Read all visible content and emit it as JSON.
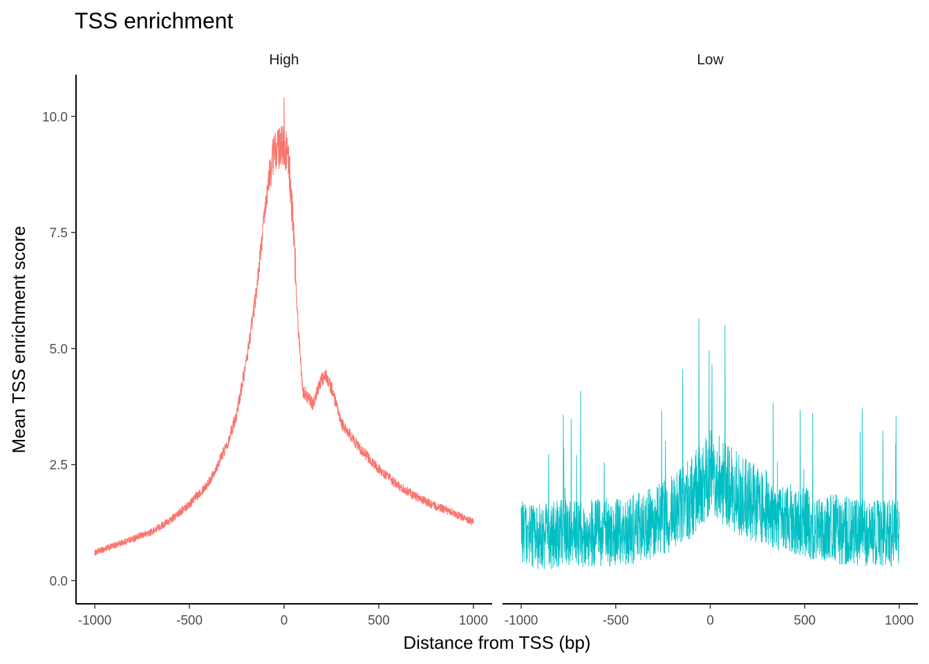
{
  "chart_data": {
    "type": "line",
    "title": "TSS enrichment",
    "xlabel": "Distance from TSS (bp)",
    "ylabel": "Mean TSS enrichment score",
    "xlim": [
      -1000,
      1000
    ],
    "ylim": [
      -0.5,
      10.9
    ],
    "x_ticks": [
      -1000,
      -500,
      0,
      500,
      1000
    ],
    "x_tick_labels": [
      "-1000",
      "-500",
      "0",
      "500",
      "1000"
    ],
    "y_ticks": [
      0.0,
      2.5,
      5.0,
      7.5,
      10.0
    ],
    "y_tick_labels": [
      "0.0",
      "2.5",
      "5.0",
      "7.5",
      "10.0"
    ],
    "grid": false,
    "legend": "none",
    "panels": [
      {
        "label": "High",
        "color": "#F8766D",
        "x": [
          -1000,
          -900,
          -800,
          -700,
          -600,
          -500,
          -400,
          -350,
          -300,
          -250,
          -200,
          -150,
          -100,
          -75,
          -50,
          -25,
          0,
          25,
          50,
          75,
          100,
          150,
          175,
          200,
          225,
          250,
          300,
          400,
          500,
          600,
          700,
          800,
          900,
          1000
        ],
        "y": [
          0.6,
          0.75,
          0.9,
          1.05,
          1.3,
          1.65,
          2.1,
          2.5,
          2.95,
          3.6,
          4.7,
          6.1,
          8.0,
          8.8,
          9.3,
          9.3,
          9.4,
          9.0,
          7.5,
          5.4,
          4.1,
          3.8,
          4.05,
          4.35,
          4.4,
          4.15,
          3.4,
          2.85,
          2.4,
          2.05,
          1.8,
          1.6,
          1.45,
          1.25
        ]
      },
      {
        "label": "Low",
        "color": "#00BFC4",
        "x": [
          -1000,
          -900,
          -800,
          -700,
          -600,
          -500,
          -400,
          -300,
          -200,
          -100,
          -50,
          0,
          50,
          100,
          200,
          300,
          400,
          500,
          600,
          700,
          800,
          900,
          1000
        ],
        "y": [
          1.0,
          0.95,
          1.0,
          1.0,
          1.05,
          1.05,
          1.1,
          1.25,
          1.45,
          1.8,
          2.1,
          2.3,
          2.2,
          2.0,
          1.75,
          1.55,
          1.35,
          1.25,
          1.15,
          1.1,
          1.05,
          1.05,
          1.0
        ]
      }
    ]
  }
}
